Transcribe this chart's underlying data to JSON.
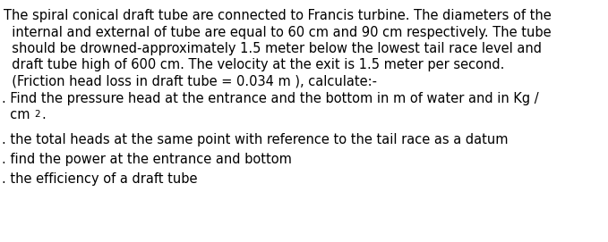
{
  "background_color": "#ffffff",
  "text_color": "#000000",
  "para_line1": "The spiral conical draft tube are connected to Francis turbine. The diameters of the",
  "para_line2": "  internal and external of tube are equal to 60 cm and 90 cm respectively. The tube",
  "para_line3": "  should be drowned-approximately 1.5 meter below the lowest tail race level and",
  "para_line4": "  draft tube high of 600 cm. The velocity at the exit is 1.5 meter per second.",
  "para_line5": "  (Friction head loss in draft tube = 0.034 m ), calculate:-",
  "bullet1a": ". Find the pressure head at the entrance and the bottom in m of water and in Kg /",
  "bullet1b_pre": "  cm",
  "bullet1b_sup": "2",
  "bullet1b_post": ".",
  "bullet2": ". the total heads at the same point with reference to the tail race as a datum",
  "bullet3": ". find the power at the entrance and bottom",
  "bullet4": ". the efficiency of a draft tube",
  "font_size": 10.5,
  "sup_font_size": 7.5,
  "fig_width": 6.79,
  "fig_height": 2.71,
  "dpi": 100
}
